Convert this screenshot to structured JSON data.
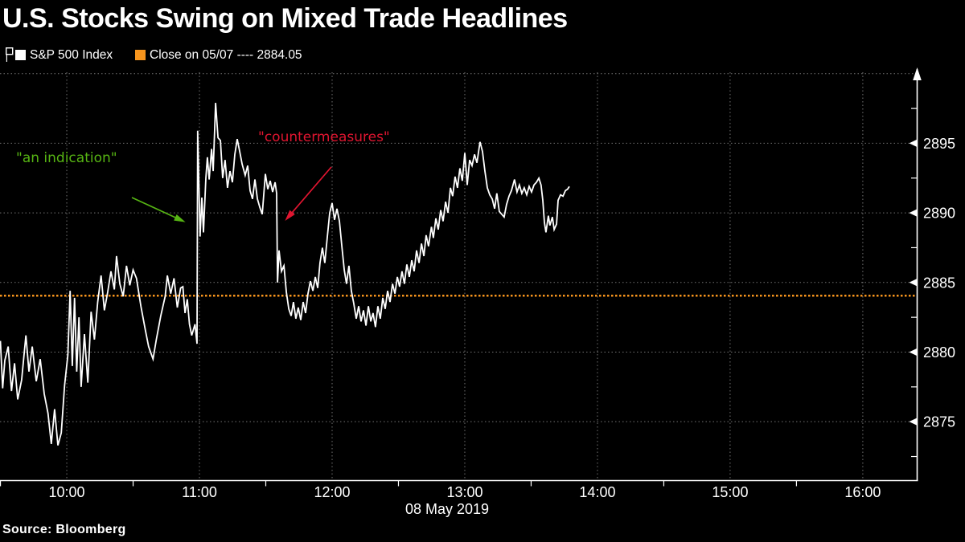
{
  "title": "U.S. Stocks Swing on Mixed Trade Headlines",
  "legend": {
    "series_swatch_icon": "white-square-swatch",
    "series_label": "S&P 500 Index",
    "close_swatch_icon": "orange-square-swatch",
    "close_label": "Close on 05/07 ---- 2884.05"
  },
  "source": "Source: Bloomberg",
  "colors": {
    "background": "#000000",
    "text": "#ffffff",
    "grid": "#9a9a9a",
    "price_line": "#ffffff",
    "close_line": "#f7951d",
    "annotation_green": "#56b413",
    "annotation_red": "#e01530"
  },
  "annotations": [
    {
      "text": "\"an indication\"",
      "color": "#56b413",
      "arrow_from": [
        164,
        246
      ],
      "arrow_to": [
        227,
        275
      ]
    },
    {
      "text": "\"countermeasures\"",
      "color": "#e01530",
      "arrow_from": [
        412,
        208
      ],
      "arrow_to": [
        357,
        272
      ]
    }
  ],
  "chart_data": {
    "type": "line",
    "title": "U.S. Stocks Swing on Mixed Trade Headlines",
    "series_name": "S&P 500 Index",
    "x_unit": "minutes since 09:30 on 08 May 2019",
    "date_label": "08 May 2019",
    "xlim": [
      -0.2,
      414.4
    ],
    "ylim": [
      2870.8,
      2900.1
    ],
    "grid": "dotted",
    "legend_position": "top-left",
    "y_axis_side": "right",
    "x_ticks": [
      {
        "label": "10:00",
        "min": 30
      },
      {
        "label": "11:00",
        "min": 90
      },
      {
        "label": "12:00",
        "min": 150
      },
      {
        "label": "13:00",
        "min": 210
      },
      {
        "label": "14:00",
        "min": 270
      },
      {
        "label": "15:00",
        "min": 330
      },
      {
        "label": "16:00",
        "min": 390
      }
    ],
    "x_minor_ticks": [
      0,
      60,
      120,
      180,
      240,
      300,
      360
    ],
    "y_ticks": [
      2875,
      2880,
      2885,
      2890,
      2895
    ],
    "y_gridlines": [
      2875,
      2880,
      2885,
      2890,
      2895,
      2900
    ],
    "y_minor_ticks": [
      2872.5,
      2877.5,
      2882.5,
      2887.5,
      2892.5,
      2897.5
    ],
    "reference_line": {
      "label": "Close on 05/07",
      "value": 2884.05,
      "color": "#f7951d"
    },
    "points": [
      [
        0,
        2880.8
      ],
      [
        1,
        2877.4
      ],
      [
        2,
        2879.4
      ],
      [
        3.5,
        2880.4
      ],
      [
        5,
        2877.2
      ],
      [
        6.4,
        2879.2
      ],
      [
        7.8,
        2876.6
      ],
      [
        9.6,
        2878.0
      ],
      [
        11.5,
        2881.2
      ],
      [
        12.9,
        2878.6
      ],
      [
        14.4,
        2880.4
      ],
      [
        16.2,
        2877.9
      ],
      [
        18,
        2879.5
      ],
      [
        19.8,
        2877.0
      ],
      [
        21.5,
        2875.6
      ],
      [
        23,
        2873.4
      ],
      [
        24.5,
        2875.9
      ],
      [
        26,
        2873.3
      ],
      [
        27.5,
        2874.2
      ],
      [
        29,
        2877.6
      ],
      [
        30.5,
        2879.8
      ],
      [
        31.5,
        2884.4
      ],
      [
        32.5,
        2879.0
      ],
      [
        33.5,
        2883.9
      ],
      [
        34.5,
        2878.6
      ],
      [
        35.5,
        2882.5
      ],
      [
        36.5,
        2877.5
      ],
      [
        38,
        2881.3
      ],
      [
        39.5,
        2877.8
      ],
      [
        41,
        2882.9
      ],
      [
        42.5,
        2880.9
      ],
      [
        44,
        2883.6
      ],
      [
        45.5,
        2885.5
      ],
      [
        47,
        2883.0
      ],
      [
        48.5,
        2884.3
      ],
      [
        50,
        2885.8
      ],
      [
        51.5,
        2884.5
      ],
      [
        52.5,
        2886.9
      ],
      [
        54,
        2884.9
      ],
      [
        55.5,
        2884.0
      ],
      [
        57,
        2886.2
      ],
      [
        58.5,
        2884.8
      ],
      [
        60,
        2885.9
      ],
      [
        61.5,
        2885.3
      ],
      [
        63.5,
        2883.3
      ],
      [
        65.5,
        2881.6
      ],
      [
        67,
        2880.4
      ],
      [
        69,
        2879.5
      ],
      [
        70.5,
        2880.9
      ],
      [
        72.5,
        2882.6
      ],
      [
        74.5,
        2884.0
      ],
      [
        75.5,
        2885.5
      ],
      [
        77,
        2884.2
      ],
      [
        78.5,
        2885.3
      ],
      [
        80,
        2883.2
      ],
      [
        81.5,
        2884.6
      ],
      [
        82.5,
        2884.7
      ],
      [
        83.5,
        2882.8
      ],
      [
        84.5,
        2883.8
      ],
      [
        85.5,
        2882.0
      ],
      [
        86.5,
        2881.2
      ],
      [
        88,
        2882.0
      ],
      [
        88.9,
        2880.6
      ],
      [
        89.2,
        2895.9
      ],
      [
        90.3,
        2888.3
      ],
      [
        91.1,
        2891.1
      ],
      [
        91.8,
        2888.6
      ],
      [
        92.9,
        2892.5
      ],
      [
        93.6,
        2894.0
      ],
      [
        94.4,
        2892.4
      ],
      [
        95.5,
        2894.6
      ],
      [
        96.2,
        2893.0
      ],
      [
        97.3,
        2897.9
      ],
      [
        98.4,
        2895.4
      ],
      [
        99.5,
        2895.2
      ],
      [
        100.5,
        2892.5
      ],
      [
        101.6,
        2893.8
      ],
      [
        102.7,
        2891.8
      ],
      [
        103.8,
        2893.0
      ],
      [
        104.9,
        2892.2
      ],
      [
        106,
        2894.2
      ],
      [
        107.1,
        2895.3
      ],
      [
        108.2,
        2894.4
      ],
      [
        109.3,
        2893.5
      ],
      [
        110.7,
        2892.7
      ],
      [
        111.8,
        2893.4
      ],
      [
        112.9,
        2891.6
      ],
      [
        114,
        2891.0
      ],
      [
        115.1,
        2892.4
      ],
      [
        116.2,
        2891.0
      ],
      [
        117.3,
        2890.4
      ],
      [
        118.4,
        2889.9
      ],
      [
        119.8,
        2892.8
      ],
      [
        120.9,
        2891.7
      ],
      [
        122,
        2892.3
      ],
      [
        123.1,
        2891.5
      ],
      [
        124.2,
        2892.2
      ],
      [
        124.9,
        2891.4
      ],
      [
        125.3,
        2885.0
      ],
      [
        126,
        2887.3
      ],
      [
        127.1,
        2885.8
      ],
      [
        128.2,
        2886.2
      ],
      [
        129.3,
        2884.3
      ],
      [
        130.4,
        2883.1
      ],
      [
        131.5,
        2882.6
      ],
      [
        132.5,
        2883.6
      ],
      [
        133.6,
        2882.4
      ],
      [
        134.7,
        2883.2
      ],
      [
        135.8,
        2882.3
      ],
      [
        136.9,
        2883.6
      ],
      [
        138,
        2882.8
      ],
      [
        139.1,
        2884.2
      ],
      [
        140.2,
        2885.1
      ],
      [
        141.3,
        2884.4
      ],
      [
        142.4,
        2885.4
      ],
      [
        143.5,
        2884.6
      ],
      [
        144.5,
        2886.4
      ],
      [
        145.6,
        2887.5
      ],
      [
        146.7,
        2886.4
      ],
      [
        147.8,
        2888.2
      ],
      [
        148.9,
        2890.0
      ],
      [
        150,
        2890.7
      ],
      [
        151.1,
        2889.5
      ],
      [
        152.2,
        2890.3
      ],
      [
        153.3,
        2889.4
      ],
      [
        154.4,
        2887.6
      ],
      [
        155.5,
        2885.9
      ],
      [
        156.5,
        2884.9
      ],
      [
        157.6,
        2886.2
      ],
      [
        158.7,
        2884.4
      ],
      [
        159.8,
        2883.5
      ],
      [
        160.9,
        2882.4
      ],
      [
        162,
        2883.3
      ],
      [
        163.1,
        2882.2
      ],
      [
        164.2,
        2883.0
      ],
      [
        165.3,
        2881.9
      ],
      [
        166.4,
        2883.3
      ],
      [
        167.5,
        2882.2
      ],
      [
        168.5,
        2882.8
      ],
      [
        169.6,
        2881.8
      ],
      [
        170.7,
        2883.3
      ],
      [
        171.8,
        2882.4
      ],
      [
        172.9,
        2883.9
      ],
      [
        174,
        2883.1
      ],
      [
        175.1,
        2884.4
      ],
      [
        176.2,
        2883.6
      ],
      [
        177.3,
        2884.9
      ],
      [
        178.4,
        2884.2
      ],
      [
        179.5,
        2885.4
      ],
      [
        180.5,
        2884.7
      ],
      [
        181.6,
        2885.8
      ],
      [
        182.7,
        2884.9
      ],
      [
        183.8,
        2886.3
      ],
      [
        184.9,
        2885.4
      ],
      [
        186,
        2886.6
      ],
      [
        187.1,
        2885.8
      ],
      [
        188.2,
        2887.3
      ],
      [
        189.3,
        2886.4
      ],
      [
        190.4,
        2887.8
      ],
      [
        191.5,
        2886.9
      ],
      [
        192.5,
        2888.4
      ],
      [
        193.6,
        2887.6
      ],
      [
        194.9,
        2889.0
      ],
      [
        195.8,
        2888.2
      ],
      [
        196.9,
        2889.6
      ],
      [
        198,
        2888.8
      ],
      [
        199.1,
        2890.2
      ],
      [
        200.2,
        2889.4
      ],
      [
        201.3,
        2890.8
      ],
      [
        202.4,
        2890.0
      ],
      [
        203.5,
        2891.8
      ],
      [
        204.5,
        2891.2
      ],
      [
        205.6,
        2892.6
      ],
      [
        206.7,
        2891.8
      ],
      [
        207.8,
        2893.2
      ],
      [
        208.9,
        2892.3
      ],
      [
        210,
        2894.3
      ],
      [
        211.1,
        2892.0
      ],
      [
        212.2,
        2893.8
      ],
      [
        213.3,
        2893.4
      ],
      [
        214.4,
        2894.2
      ],
      [
        215.5,
        2893.6
      ],
      [
        216.9,
        2895.1
      ],
      [
        218,
        2894.4
      ],
      [
        219.1,
        2893.0
      ],
      [
        220.2,
        2891.8
      ],
      [
        221.3,
        2891.3
      ],
      [
        222.4,
        2891.0
      ],
      [
        223.5,
        2890.3
      ],
      [
        224.5,
        2891.4
      ],
      [
        225.6,
        2890.1
      ],
      [
        226.7,
        2889.9
      ],
      [
        227.8,
        2889.7
      ],
      [
        228.9,
        2890.6
      ],
      [
        230,
        2891.2
      ],
      [
        231.1,
        2891.6
      ],
      [
        232.5,
        2892.4
      ],
      [
        233.6,
        2891.5
      ],
      [
        234.7,
        2892.0
      ],
      [
        235.8,
        2891.4
      ],
      [
        236.9,
        2891.8
      ],
      [
        238,
        2891.3
      ],
      [
        239.1,
        2891.9
      ],
      [
        240.2,
        2891.5
      ],
      [
        241.3,
        2892.0
      ],
      [
        242.4,
        2892.2
      ],
      [
        243.5,
        2892.5
      ],
      [
        244.5,
        2892.0
      ],
      [
        245.3,
        2890.9
      ],
      [
        246,
        2889.3
      ],
      [
        246.7,
        2888.6
      ],
      [
        247.8,
        2889.8
      ],
      [
        248.5,
        2889.1
      ],
      [
        249.6,
        2889.7
      ],
      [
        250.4,
        2888.8
      ],
      [
        251.5,
        2889.2
      ],
      [
        252.2,
        2890.9
      ],
      [
        253.3,
        2891.3
      ],
      [
        254.4,
        2891.2
      ],
      [
        255.5,
        2891.6
      ],
      [
        256.5,
        2891.7
      ],
      [
        257.3,
        2891.9
      ]
    ]
  }
}
